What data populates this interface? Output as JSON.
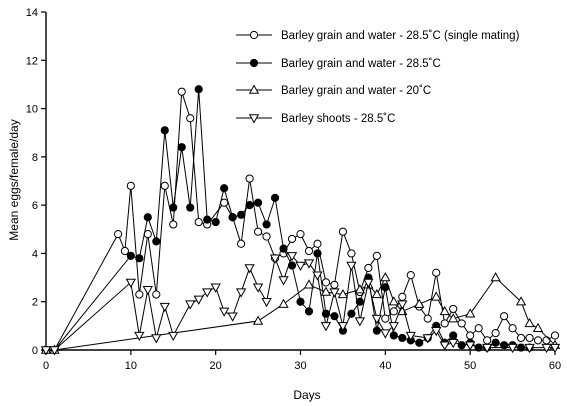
{
  "chart_data": {
    "type": "line",
    "title": "",
    "xlabel": "Days",
    "ylabel": "Mean eggs/female/day",
    "xlim": [
      0,
      60
    ],
    "ylim": [
      0,
      14
    ],
    "xticks": [
      0,
      10,
      20,
      30,
      40,
      50,
      60
    ],
    "yticks": [
      0,
      2,
      4,
      6,
      8,
      10,
      12,
      14
    ],
    "grid": false,
    "legend_position": "top-right",
    "series": [
      {
        "name": "Barley grain and water - 28.5˚C (single mating)",
        "marker": "circle-open",
        "x": [
          0,
          1,
          8.5,
          9.3,
          10,
          11,
          12,
          13,
          14,
          15,
          16,
          17,
          18,
          19,
          21,
          22,
          23,
          24,
          25,
          26,
          27,
          28,
          29,
          30,
          31,
          32,
          33,
          34,
          35,
          36,
          37,
          38,
          39,
          40,
          41,
          42,
          43,
          44,
          45,
          46,
          47,
          48,
          49,
          50,
          51,
          52,
          53,
          54,
          55,
          56,
          57,
          58,
          59,
          60
        ],
        "y": [
          0,
          0,
          4.8,
          4.1,
          6.8,
          2.3,
          4.8,
          2.3,
          6.8,
          5.2,
          10.7,
          9.6,
          5.3,
          5.2,
          6.1,
          5.5,
          4.4,
          7.1,
          4.9,
          4.7,
          3.8,
          4.0,
          4.6,
          4.8,
          4.1,
          4.4,
          2.8,
          2.7,
          4.9,
          4.0,
          2.4,
          3.4,
          3.9,
          1.3,
          1.6,
          2.2,
          3.1,
          1.8,
          1.3,
          3.2,
          1.1,
          1.7,
          1.1,
          0.6,
          0.9,
          0.4,
          0.7,
          1.4,
          0.9,
          0.5,
          0.5,
          0.4,
          0.4,
          0.6
        ]
      },
      {
        "name": "Barley grain and water - 28.5˚C",
        "marker": "circle-filled",
        "x": [
          0,
          1,
          10,
          11,
          12,
          13,
          14,
          15,
          16,
          17,
          18,
          19,
          20,
          21,
          22,
          23,
          24,
          25,
          26,
          27,
          28,
          29,
          30,
          31,
          32,
          33,
          34,
          35,
          36,
          37,
          38,
          39,
          40,
          41,
          42,
          43,
          44,
          45,
          46,
          47,
          48,
          49,
          50,
          51,
          52,
          53,
          54,
          55,
          56,
          57
        ],
        "y": [
          0,
          0,
          3.9,
          3.8,
          5.5,
          4.5,
          9.1,
          5.9,
          8.4,
          5.9,
          10.8,
          5.4,
          5.3,
          6.7,
          5.5,
          5.6,
          6.0,
          6.1,
          5.2,
          6.3,
          4.2,
          3.5,
          2.0,
          1.6,
          4.0,
          1.5,
          1.4,
          0.8,
          1.5,
          2.0,
          3.0,
          0.8,
          2.6,
          0.6,
          0.5,
          0.4,
          0.3,
          0.5,
          1.0,
          0.3,
          0.6,
          0.2,
          0.3,
          0.1,
          0.1,
          0.3,
          0.2,
          0.2,
          0.1,
          0.1
        ]
      },
      {
        "name": "Barley grain and water - 20˚C",
        "marker": "triangle-up-open",
        "x": [
          0,
          1,
          25,
          28,
          31,
          33,
          35,
          37,
          38,
          39,
          40,
          41,
          42,
          44,
          46,
          47,
          48,
          50,
          53,
          56,
          57,
          58,
          60
        ],
        "y": [
          0,
          0,
          1.2,
          1.9,
          2.7,
          2.4,
          2.3,
          2.5,
          2.7,
          2.3,
          3.0,
          2.0,
          1.6,
          1.9,
          2.2,
          1.6,
          1.3,
          1.5,
          3.0,
          2.0,
          1.1,
          0.9,
          0.2
        ]
      },
      {
        "name": "Barley shoots - 28.5˚C",
        "marker": "triangle-down-open",
        "x": [
          0,
          1,
          10,
          11,
          12,
          13,
          14,
          15,
          17,
          18,
          19,
          20,
          21,
          22,
          23,
          24,
          25,
          26,
          27,
          28,
          29,
          30,
          31,
          32,
          33,
          34,
          35,
          36,
          37,
          38,
          39,
          40,
          41,
          42,
          43,
          45,
          46,
          47,
          48,
          50,
          52,
          55,
          57,
          59,
          60
        ],
        "y": [
          0,
          0,
          2.8,
          0.6,
          2.5,
          0.5,
          1.8,
          0.6,
          1.9,
          2.1,
          2.4,
          2.6,
          1.6,
          1.4,
          2.4,
          3.4,
          2.6,
          2.0,
          3.8,
          2.9,
          3.9,
          3.5,
          3.6,
          3.1,
          1.0,
          2.4,
          1.0,
          3.5,
          1.2,
          2.8,
          1.3,
          0.7,
          1.0,
          1.9,
          0.6,
          0.5,
          0.8,
          0.2,
          0.3,
          0.2,
          0.1,
          0.1,
          0.1,
          0.1,
          0.1
        ]
      }
    ]
  }
}
